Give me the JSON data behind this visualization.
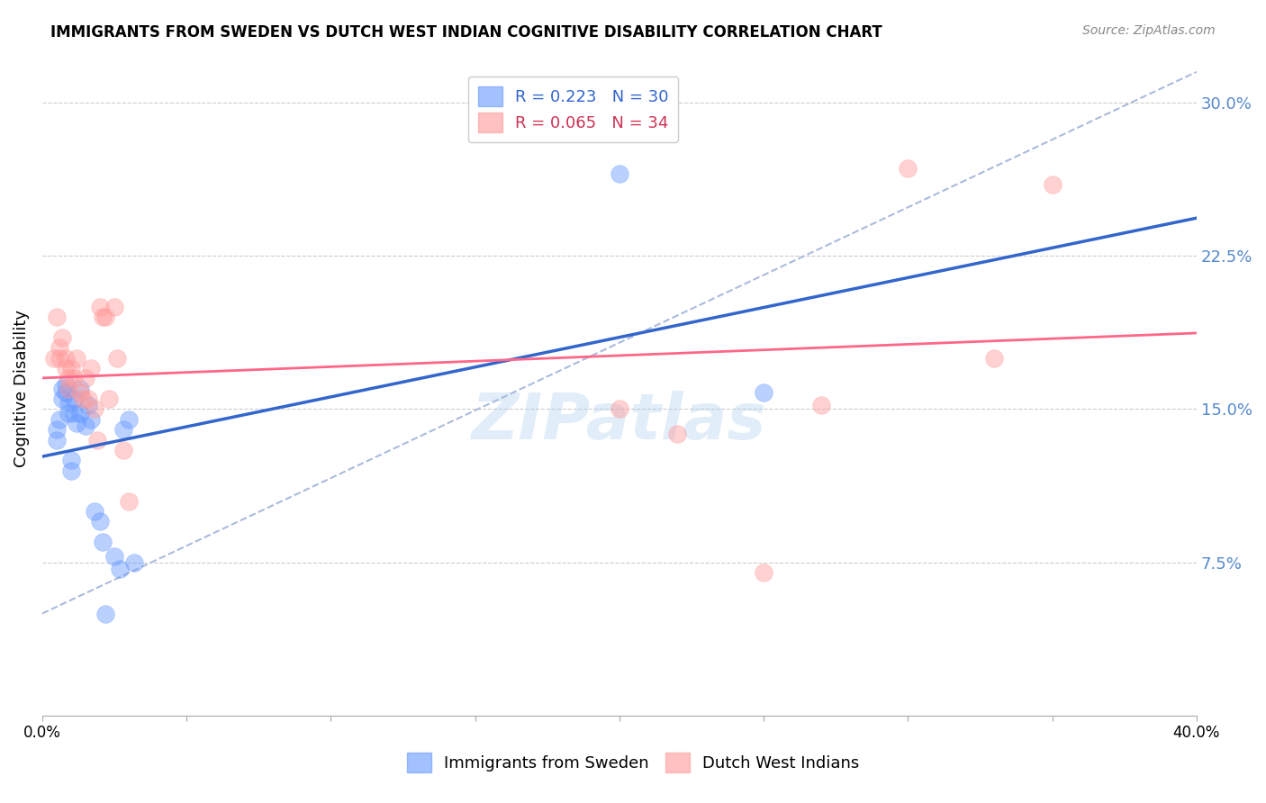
{
  "title": "IMMIGRANTS FROM SWEDEN VS DUTCH WEST INDIAN COGNITIVE DISABILITY CORRELATION CHART",
  "source": "Source: ZipAtlas.com",
  "ylabel": "Cognitive Disability",
  "right_yticks": [
    "30.0%",
    "22.5%",
    "15.0%",
    "7.5%"
  ],
  "right_ytick_vals": [
    0.3,
    0.225,
    0.15,
    0.075
  ],
  "xlim": [
    0.0,
    0.4
  ],
  "ylim": [
    0.0,
    0.32
  ],
  "sweden_R": 0.223,
  "sweden_N": 30,
  "dutch_R": 0.065,
  "dutch_N": 34,
  "sweden_color": "#6699ff",
  "dutch_color": "#ff9999",
  "sweden_line_color": "#3366cc",
  "dutch_line_color": "#ff6688",
  "dashed_line_color": "#aabbdd",
  "watermark": "ZIPatlas",
  "sweden_x": [
    0.005,
    0.005,
    0.006,
    0.007,
    0.007,
    0.008,
    0.008,
    0.009,
    0.009,
    0.01,
    0.01,
    0.011,
    0.011,
    0.012,
    0.013,
    0.013,
    0.015,
    0.016,
    0.017,
    0.018,
    0.02,
    0.021,
    0.022,
    0.025,
    0.027,
    0.028,
    0.03,
    0.032,
    0.2,
    0.25
  ],
  "sweden_y": [
    0.135,
    0.14,
    0.145,
    0.16,
    0.155,
    0.158,
    0.162,
    0.148,
    0.153,
    0.12,
    0.125,
    0.148,
    0.155,
    0.143,
    0.148,
    0.16,
    0.142,
    0.152,
    0.145,
    0.1,
    0.095,
    0.085,
    0.05,
    0.078,
    0.072,
    0.14,
    0.145,
    0.075,
    0.265,
    0.158
  ],
  "dutch_x": [
    0.004,
    0.005,
    0.006,
    0.006,
    0.007,
    0.008,
    0.008,
    0.009,
    0.009,
    0.01,
    0.011,
    0.012,
    0.013,
    0.014,
    0.015,
    0.016,
    0.017,
    0.018,
    0.019,
    0.02,
    0.021,
    0.022,
    0.023,
    0.025,
    0.026,
    0.028,
    0.03,
    0.2,
    0.22,
    0.25,
    0.27,
    0.3,
    0.33,
    0.35
  ],
  "dutch_y": [
    0.175,
    0.195,
    0.175,
    0.18,
    0.185,
    0.17,
    0.175,
    0.165,
    0.16,
    0.17,
    0.165,
    0.175,
    0.158,
    0.155,
    0.165,
    0.155,
    0.17,
    0.15,
    0.135,
    0.2,
    0.195,
    0.195,
    0.155,
    0.2,
    0.175,
    0.13,
    0.105,
    0.15,
    0.138,
    0.07,
    0.152,
    0.268,
    0.175,
    0.26
  ]
}
